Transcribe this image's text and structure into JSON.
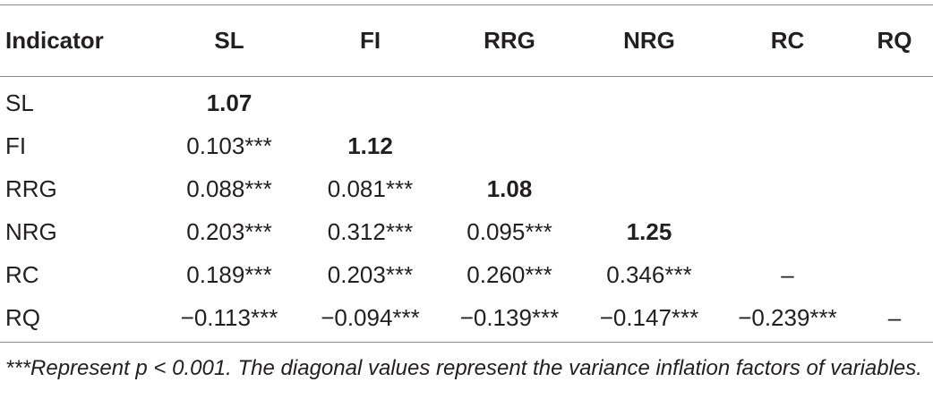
{
  "table": {
    "headers": [
      "Indicator",
      "SL",
      "FI",
      "RRG",
      "NRG",
      "RC",
      "RQ"
    ],
    "rows": [
      {
        "label": "SL",
        "cells": [
          "1.07",
          "",
          "",
          "",
          "",
          ""
        ]
      },
      {
        "label": "FI",
        "cells": [
          "0.103***",
          "1.12",
          "",
          "",
          "",
          ""
        ]
      },
      {
        "label": "RRG",
        "cells": [
          "0.088***",
          "0.081***",
          "1.08",
          "",
          "",
          ""
        ]
      },
      {
        "label": "NRG",
        "cells": [
          "0.203***",
          "0.312***",
          "0.095***",
          "1.25",
          "",
          ""
        ]
      },
      {
        "label": "RC",
        "cells": [
          "0.189***",
          "0.203***",
          "0.260***",
          "0.346***",
          "–",
          ""
        ]
      },
      {
        "label": "RQ",
        "cells": [
          "−0.113***",
          "−0.094***",
          "−0.139***",
          "−0.147***",
          "−0.239***",
          "–"
        ]
      }
    ]
  },
  "footnote": "***Represent p < 0.001. The diagonal values represent the variance inflation factors of variables."
}
